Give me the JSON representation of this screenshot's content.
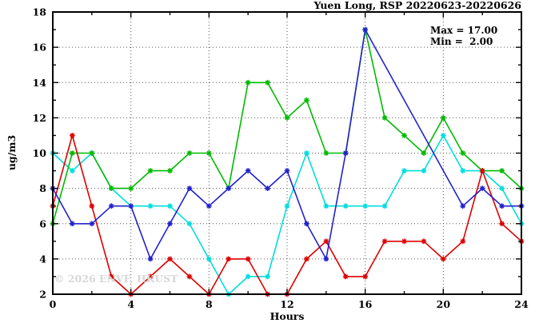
{
  "window": {
    "background": "#ffffff"
  },
  "header": {
    "title": "Yuen Long, RSP 20220623-20220626"
  },
  "annotations": {
    "max_label": "Max = 17.00",
    "min_label": "Min =  2.00"
  },
  "watermark": "© 2026 ENVF, HKUST",
  "chart_data": {
    "type": "line",
    "title": "Yuen Long, RSP 20220623-20220626",
    "xlabel": "Hours",
    "ylabel": "ug/m3",
    "xlim": [
      0,
      24
    ],
    "ylim": [
      2,
      18
    ],
    "x_major_ticks": [
      0,
      4,
      8,
      12,
      16,
      20,
      24
    ],
    "x_minor_ticks": [
      2,
      6,
      10,
      14,
      18,
      22
    ],
    "y_major_ticks": [
      2,
      4,
      6,
      8,
      10,
      12,
      14,
      16,
      18
    ],
    "y_minor_ticks": [
      3,
      5,
      7,
      9,
      11,
      13,
      15,
      17
    ],
    "grid": {
      "show": true,
      "style": "dotted",
      "color": "#555555",
      "x_lines": [
        4,
        8,
        12,
        16,
        20
      ],
      "y_lines": [
        4,
        6,
        8,
        10,
        12,
        14,
        16
      ]
    },
    "legend_position": "none",
    "marker": "asterisk",
    "x": [
      0,
      1,
      2,
      3,
      4,
      5,
      6,
      7,
      8,
      9,
      10,
      11,
      12,
      13,
      14,
      15,
      16,
      17,
      18,
      19,
      20,
      21,
      22,
      23,
      24
    ],
    "series": [
      {
        "name": "series-cyan",
        "color": "#00dddd",
        "values": [
          10,
          9,
          10,
          8,
          7,
          7,
          7,
          6,
          4,
          2,
          3,
          3,
          7,
          10,
          7,
          7,
          7,
          7,
          9,
          9,
          11,
          9,
          9,
          8,
          6
        ]
      },
      {
        "name": "series-green",
        "color": "#00bb00",
        "values": [
          6,
          10,
          10,
          8,
          8,
          9,
          9,
          10,
          10,
          8,
          14,
          14,
          12,
          13,
          10,
          10,
          17,
          12,
          11,
          10,
          12,
          10,
          9,
          9,
          8
        ]
      },
      {
        "name": "series-red",
        "color": "#dd0000",
        "values": [
          7,
          11,
          7,
          3,
          2,
          3,
          4,
          3,
          2,
          4,
          4,
          2,
          2,
          4,
          5,
          3,
          3,
          5,
          5,
          5,
          4,
          5,
          9,
          6,
          5
        ]
      },
      {
        "name": "series-blue",
        "color": "#2222cc",
        "values": [
          8,
          6,
          6,
          7,
          7,
          4,
          6,
          8,
          7,
          8,
          9,
          8,
          9,
          6,
          4,
          10,
          17,
          null,
          null,
          null,
          null,
          7,
          8,
          7,
          7
        ]
      }
    ],
    "stats": {
      "max": 17.0,
      "min": 2.0
    },
    "frame_color": "#000000"
  }
}
